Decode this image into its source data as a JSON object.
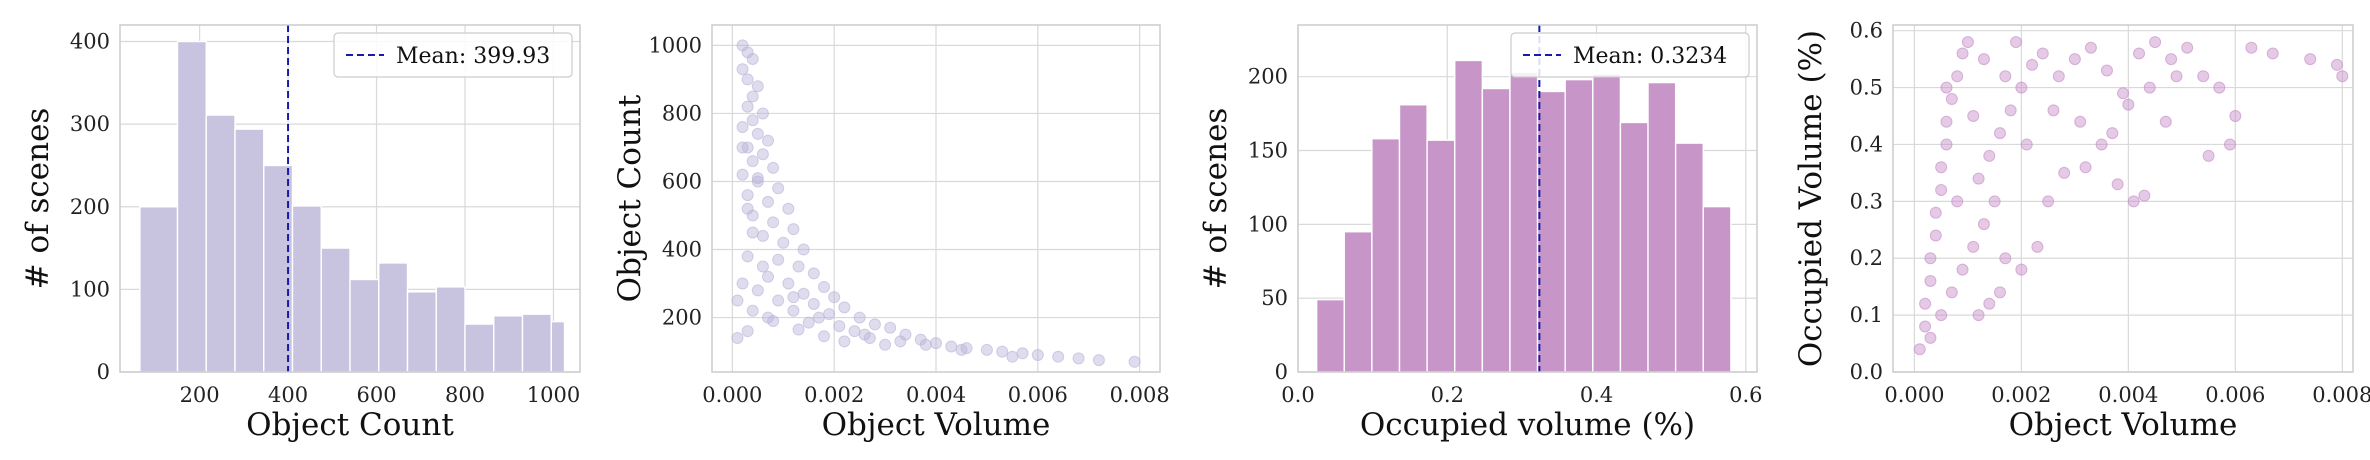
{
  "chart_data": [
    {
      "type": "bar",
      "xlabel": "Object Count",
      "ylabel": "# of scenes",
      "xlim": [
        20,
        1060
      ],
      "ylim": [
        0,
        420
      ],
      "xticks": [
        200,
        400,
        600,
        800,
        1000
      ],
      "yticks": [
        0,
        100,
        200,
        300,
        400
      ],
      "bin_edges": [
        65,
        150,
        215,
        280,
        345,
        410,
        475,
        540,
        605,
        670,
        735,
        800,
        865,
        930,
        995,
        1025
      ],
      "values": [
        200,
        400,
        311,
        294,
        250,
        201,
        150,
        112,
        132,
        97,
        103,
        58,
        68,
        70,
        61
      ],
      "mean_value": 399.93,
      "mean_label": "Mean: 399.93",
      "color": "#c8c4e0",
      "mean_color": "#1a1aa8",
      "legend_loc": "upper right",
      "grid": true
    },
    {
      "type": "scatter",
      "xlabel": "Object Volume",
      "ylabel": "Object Count",
      "xlim": [
        -0.0004,
        0.0084
      ],
      "ylim": [
        40,
        1060
      ],
      "xticks": [
        0.0,
        0.002,
        0.004,
        0.006,
        0.008
      ],
      "xtick_labels": [
        "0.000",
        "0.002",
        "0.004",
        "0.006",
        "0.008"
      ],
      "yticks": [
        200,
        400,
        600,
        800,
        1000
      ],
      "points": [
        [
          0.0002,
          1000
        ],
        [
          0.0003,
          980
        ],
        [
          0.0004,
          960
        ],
        [
          0.0002,
          930
        ],
        [
          0.0003,
          900
        ],
        [
          0.0005,
          880
        ],
        [
          0.0004,
          850
        ],
        [
          0.0003,
          820
        ],
        [
          0.0006,
          800
        ],
        [
          0.0004,
          780
        ],
        [
          0.0002,
          760
        ],
        [
          0.0005,
          740
        ],
        [
          0.0007,
          720
        ],
        [
          0.0003,
          700
        ],
        [
          0.0006,
          680
        ],
        [
          0.0004,
          660
        ],
        [
          0.0008,
          640
        ],
        [
          0.0002,
          620
        ],
        [
          0.0005,
          600
        ],
        [
          0.0009,
          580
        ],
        [
          0.0003,
          560
        ],
        [
          0.0007,
          540
        ],
        [
          0.0011,
          520
        ],
        [
          0.0004,
          500
        ],
        [
          0.0008,
          480
        ],
        [
          0.0012,
          460
        ],
        [
          0.0006,
          440
        ],
        [
          0.001,
          420
        ],
        [
          0.0014,
          400
        ],
        [
          0.0003,
          380
        ],
        [
          0.0009,
          370
        ],
        [
          0.0013,
          350
        ],
        [
          0.0016,
          330
        ],
        [
          0.0007,
          320
        ],
        [
          0.0011,
          300
        ],
        [
          0.0018,
          290
        ],
        [
          0.0005,
          280
        ],
        [
          0.0014,
          270
        ],
        [
          0.002,
          260
        ],
        [
          0.0009,
          250
        ],
        [
          0.0016,
          240
        ],
        [
          0.0022,
          230
        ],
        [
          0.0012,
          220
        ],
        [
          0.0019,
          210
        ],
        [
          0.0025,
          200
        ],
        [
          0.0008,
          190
        ],
        [
          0.0015,
          185
        ],
        [
          0.0028,
          180
        ],
        [
          0.0021,
          175
        ],
        [
          0.0031,
          170
        ],
        [
          0.0013,
          165
        ],
        [
          0.0024,
          160
        ],
        [
          0.0034,
          150
        ],
        [
          0.0018,
          145
        ],
        [
          0.0027,
          140
        ],
        [
          0.0037,
          135
        ],
        [
          0.0022,
          130
        ],
        [
          0.004,
          125
        ],
        [
          0.003,
          120
        ],
        [
          0.0043,
          115
        ],
        [
          0.0046,
          110
        ],
        [
          0.005,
          105
        ],
        [
          0.0053,
          100
        ],
        [
          0.0057,
          95
        ],
        [
          0.006,
          90
        ],
        [
          0.0064,
          85
        ],
        [
          0.0068,
          80
        ],
        [
          0.0072,
          75
        ],
        [
          0.0079,
          70
        ],
        [
          0.0004,
          450
        ],
        [
          0.0006,
          350
        ],
        [
          0.0002,
          300
        ],
        [
          0.0001,
          250
        ],
        [
          0.0004,
          220
        ],
        [
          0.0007,
          200
        ],
        [
          0.0003,
          160
        ],
        [
          0.0001,
          140
        ],
        [
          0.0005,
          610
        ],
        [
          0.0002,
          700
        ],
        [
          0.0003,
          520
        ],
        [
          0.0012,
          260
        ],
        [
          0.0017,
          200
        ],
        [
          0.0026,
          150
        ],
        [
          0.0033,
          130
        ],
        [
          0.0038,
          120
        ],
        [
          0.0045,
          105
        ],
        [
          0.0055,
          85
        ]
      ],
      "color": "#b8b4d8",
      "grid": true
    },
    {
      "type": "bar",
      "xlabel": "Occupied volume (%)",
      "ylabel": "# of scenes",
      "xlim": [
        0.0,
        0.615
      ],
      "ylim": [
        0,
        235
      ],
      "xticks": [
        0.0,
        0.2,
        0.4,
        0.6
      ],
      "xtick_labels": [
        "0.0",
        "0.2",
        "0.4",
        "0.6"
      ],
      "yticks": [
        0,
        50,
        100,
        150,
        200
      ],
      "bin_edges": [
        0.025,
        0.062,
        0.099,
        0.136,
        0.173,
        0.21,
        0.247,
        0.284,
        0.321,
        0.358,
        0.395,
        0.432,
        0.469,
        0.506,
        0.543,
        0.58
      ],
      "values": [
        49,
        95,
        158,
        181,
        157,
        211,
        192,
        203,
        190,
        198,
        202,
        169,
        196,
        155,
        112
      ],
      "mean_value": 0.3234,
      "mean_label": "Mean: 0.3234",
      "color": "#c795c8",
      "mean_color": "#1a1aa8",
      "legend_loc": "upper right",
      "grid": true
    },
    {
      "type": "scatter",
      "xlabel": "Object Volume",
      "ylabel": "Occupied Volume (%)",
      "xlim": [
        -0.0004,
        0.0082
      ],
      "ylim": [
        0.0,
        0.61
      ],
      "xticks": [
        0.0,
        0.002,
        0.004,
        0.006,
        0.008
      ],
      "xtick_labels": [
        "0.000",
        "0.002",
        "0.004",
        "0.006",
        "0.008"
      ],
      "yticks": [
        0.0,
        0.1,
        0.2,
        0.3,
        0.4,
        0.5,
        0.6
      ],
      "ytick_labels": [
        "0.0",
        "0.1",
        "0.2",
        "0.3",
        "0.4",
        "0.5",
        "0.6"
      ],
      "points": [
        [
          0.0001,
          0.04
        ],
        [
          0.0002,
          0.08
        ],
        [
          0.0002,
          0.12
        ],
        [
          0.0003,
          0.16
        ],
        [
          0.0003,
          0.2
        ],
        [
          0.0004,
          0.24
        ],
        [
          0.0004,
          0.28
        ],
        [
          0.0005,
          0.32
        ],
        [
          0.0005,
          0.36
        ],
        [
          0.0006,
          0.4
        ],
        [
          0.0006,
          0.44
        ],
        [
          0.0007,
          0.48
        ],
        [
          0.0008,
          0.52
        ],
        [
          0.0009,
          0.56
        ],
        [
          0.001,
          0.58
        ],
        [
          0.0003,
          0.06
        ],
        [
          0.0005,
          0.1
        ],
        [
          0.0007,
          0.14
        ],
        [
          0.0009,
          0.18
        ],
        [
          0.0011,
          0.22
        ],
        [
          0.0013,
          0.26
        ],
        [
          0.0015,
          0.3
        ],
        [
          0.0012,
          0.34
        ],
        [
          0.0014,
          0.38
        ],
        [
          0.0016,
          0.42
        ],
        [
          0.0018,
          0.46
        ],
        [
          0.002,
          0.5
        ],
        [
          0.0022,
          0.54
        ],
        [
          0.0019,
          0.58
        ],
        [
          0.0024,
          0.56
        ],
        [
          0.0027,
          0.52
        ],
        [
          0.003,
          0.55
        ],
        [
          0.0033,
          0.57
        ],
        [
          0.0036,
          0.53
        ],
        [
          0.0039,
          0.49
        ],
        [
          0.0042,
          0.56
        ],
        [
          0.0045,
          0.58
        ],
        [
          0.0048,
          0.55
        ],
        [
          0.0051,
          0.57
        ],
        [
          0.0054,
          0.52
        ],
        [
          0.0057,
          0.5
        ],
        [
          0.006,
          0.45
        ],
        [
          0.0063,
          0.57
        ],
        [
          0.0067,
          0.56
        ],
        [
          0.0074,
          0.55
        ],
        [
          0.0079,
          0.54
        ],
        [
          0.008,
          0.52
        ],
        [
          0.0059,
          0.4
        ],
        [
          0.0055,
          0.38
        ],
        [
          0.0047,
          0.44
        ],
        [
          0.0043,
          0.31
        ],
        [
          0.0041,
          0.3
        ],
        [
          0.0038,
          0.33
        ],
        [
          0.0035,
          0.4
        ],
        [
          0.0031,
          0.44
        ],
        [
          0.0028,
          0.35
        ],
        [
          0.0025,
          0.3
        ],
        [
          0.0023,
          0.22
        ],
        [
          0.002,
          0.18
        ],
        [
          0.0017,
          0.2
        ],
        [
          0.0016,
          0.14
        ],
        [
          0.0014,
          0.12
        ],
        [
          0.0012,
          0.1
        ],
        [
          0.0008,
          0.3
        ],
        [
          0.0006,
          0.5
        ],
        [
          0.0011,
          0.45
        ],
        [
          0.0013,
          0.55
        ],
        [
          0.0017,
          0.52
        ],
        [
          0.0021,
          0.4
        ],
        [
          0.0026,
          0.46
        ],
        [
          0.0032,
          0.36
        ],
        [
          0.0037,
          0.42
        ],
        [
          0.004,
          0.47
        ],
        [
          0.0044,
          0.5
        ],
        [
          0.0049,
          0.52
        ]
      ],
      "color": "#c48ac6",
      "grid": true
    }
  ]
}
